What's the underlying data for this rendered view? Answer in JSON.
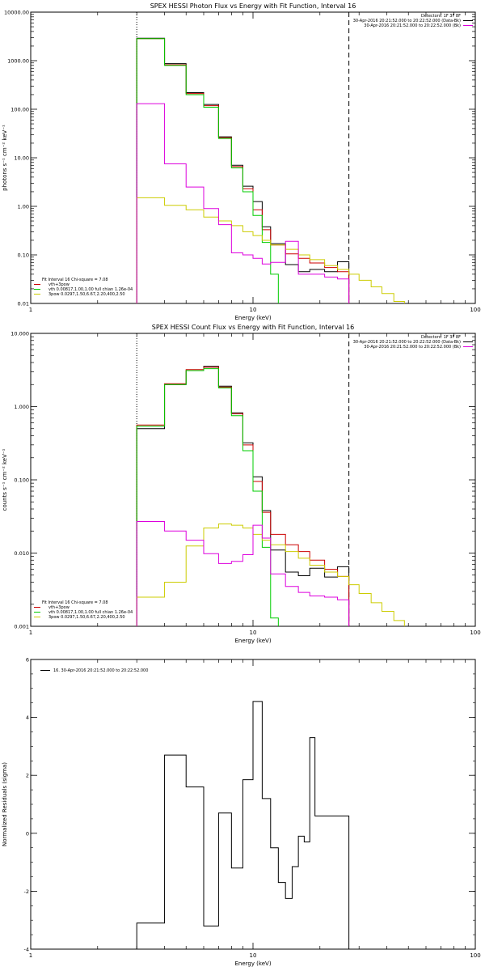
{
  "chart_data": [
    {
      "type": "line",
      "title": "SPEX HESSI Photon Flux vs Energy with Fit Function, Interval 16",
      "xlabel": "Energy (keV)",
      "ylabel": "photons s⁻¹ cm⁻² keV⁻¹",
      "xlim": [
        1,
        100
      ],
      "ylim": [
        0.01,
        10000
      ],
      "xscale": "log",
      "yscale": "log",
      "x_ticks": [
        "1",
        "10",
        "100"
      ],
      "y_ticks": [
        "0.01",
        "0.10",
        "1.00",
        "10.00",
        "100.00",
        "1000.00",
        "10000.00"
      ],
      "vertical_lines": [
        {
          "x": 3.0,
          "style": "dotted"
        },
        {
          "x": 27.0,
          "style": "dashed"
        }
      ],
      "legend_top": [
        {
          "text": "Detectors: 1F 3F 8F",
          "color": ""
        },
        {
          "text": "30-Apr-2016 20:21:52.000 to 20:22:52.000 (Data-Bk)",
          "color": "#000000"
        },
        {
          "text": "30-Apr-2016 20:21:52.000 to 20:22:52.000 (Bk)",
          "color": "#dd00dd"
        }
      ],
      "legend_bottom": [
        {
          "text": "Fit Interval 16   Chi-square = 7.08",
          "color": ""
        },
        {
          "text": "vth+3pow",
          "color": "#cc0000"
        },
        {
          "text": "vth 0.00817,1.00,1.00  full chian 1.26e-04",
          "color": "#00cc00"
        },
        {
          "text": "3pow 0.0297,1.50,6.67,2.20,400,2.50",
          "color": "#cccc00"
        }
      ],
      "series": [
        {
          "name": "Data-Bk",
          "color": "#000000",
          "edges": [
            3,
            4,
            5,
            6,
            7,
            8,
            9,
            10,
            11,
            12,
            14,
            16,
            18,
            21,
            24,
            27
          ],
          "values": [
            2900,
            870,
            220,
            125,
            27,
            7,
            2.6,
            1.25,
            0.38,
            0.17,
            0.063,
            0.045,
            0.05,
            0.045,
            0.072
          ]
        },
        {
          "name": "vth+3pow",
          "color": "#cc0000",
          "edges": [
            3,
            4,
            5,
            6,
            7,
            8,
            9,
            10,
            11,
            12,
            14,
            16,
            18,
            21,
            24,
            27
          ],
          "values": [
            2850,
            820,
            210,
            118,
            26,
            6.6,
            2.3,
            0.85,
            0.33,
            0.16,
            0.105,
            0.085,
            0.068,
            0.055,
            0.045
          ]
        },
        {
          "name": "vth",
          "color": "#00cc00",
          "edges": [
            3,
            4,
            5,
            6,
            7,
            8,
            9,
            10,
            11,
            12,
            13
          ],
          "values": [
            2850,
            800,
            200,
            110,
            25,
            6.2,
            2.0,
            0.65,
            0.18,
            0.04
          ]
        },
        {
          "name": "3pow",
          "color": "#cccc00",
          "edges": [
            3,
            4,
            5,
            6,
            7,
            8,
            9,
            10,
            11,
            12,
            14,
            16,
            18,
            21,
            24,
            27,
            30,
            34,
            38,
            43,
            48
          ],
          "values": [
            1.5,
            1.05,
            0.85,
            0.6,
            0.5,
            0.4,
            0.3,
            0.25,
            0.2,
            0.16,
            0.13,
            0.1,
            0.08,
            0.06,
            0.05,
            0.04,
            0.03,
            0.022,
            0.016,
            0.011
          ]
        },
        {
          "name": "Bk",
          "color": "#dd00dd",
          "edges": [
            3,
            4,
            5,
            6,
            7,
            8,
            9,
            10,
            11,
            12,
            14,
            16,
            18,
            21,
            24,
            27
          ],
          "values": [
            130,
            7.5,
            2.5,
            0.9,
            0.42,
            0.11,
            0.1,
            0.085,
            0.065,
            0.07,
            0.19,
            0.04,
            0.04,
            0.035,
            0.032
          ]
        }
      ]
    },
    {
      "type": "line",
      "title": "SPEX HESSI Count Flux vs Energy with Fit Function, Interval 16",
      "xlabel": "Energy (keV)",
      "ylabel": "counts s⁻¹ cm⁻² keV⁻¹",
      "xlim": [
        1,
        100
      ],
      "ylim": [
        0.001,
        10
      ],
      "xscale": "log",
      "yscale": "log",
      "x_ticks": [
        "1",
        "10",
        "100"
      ],
      "y_ticks": [
        "0.001",
        "0.010",
        "0.100",
        "1.000",
        "10.000"
      ],
      "vertical_lines": [
        {
          "x": 3.0,
          "style": "dotted"
        },
        {
          "x": 27.0,
          "style": "dashed"
        }
      ],
      "legend_top": [
        {
          "text": "Detectors: 1F 3F 8F",
          "color": ""
        },
        {
          "text": "30-Apr-2016 20:21:52.000 to 20:22:52.000 (Data-Bk)",
          "color": "#000000"
        },
        {
          "text": "30-Apr-2016 20:21:52.000 to 20:22:52.000 (Bk)",
          "color": "#dd00dd"
        }
      ],
      "legend_bottom": [
        {
          "text": "Fit Interval 16   Chi-square = 7.08",
          "color": ""
        },
        {
          "text": "vth+3pow",
          "color": "#cc0000"
        },
        {
          "text": "vth 0.00817,1.00,1.00  full chian 1.26e-04",
          "color": "#00cc00"
        },
        {
          "text": "3pow 0.0297,1.50,6.67,2.20,400,2.50",
          "color": "#cccc00"
        }
      ],
      "series": [
        {
          "name": "Data-Bk",
          "color": "#000000",
          "edges": [
            3,
            4,
            5,
            6,
            7,
            8,
            9,
            10,
            11,
            12,
            14,
            16,
            18,
            21,
            24,
            27
          ],
          "values": [
            0.5,
            2.0,
            3.1,
            3.55,
            1.9,
            0.82,
            0.32,
            0.11,
            0.038,
            0.011,
            0.0055,
            0.0049,
            0.0062,
            0.0047,
            0.0065
          ]
        },
        {
          "name": "vth+3pow",
          "color": "#cc0000",
          "edges": [
            3,
            4,
            5,
            6,
            7,
            8,
            9,
            10,
            11,
            12,
            14,
            16,
            18,
            21,
            24,
            27
          ],
          "values": [
            0.56,
            2.05,
            3.2,
            3.45,
            1.85,
            0.8,
            0.3,
            0.095,
            0.036,
            0.018,
            0.013,
            0.0105,
            0.008,
            0.006,
            0.0048
          ]
        },
        {
          "name": "vth",
          "color": "#00cc00",
          "edges": [
            3,
            4,
            5,
            6,
            7,
            8,
            9,
            10,
            11,
            12,
            13
          ],
          "values": [
            0.54,
            2.0,
            3.1,
            3.3,
            1.8,
            0.75,
            0.25,
            0.07,
            0.012,
            0.0013
          ]
        },
        {
          "name": "3pow",
          "color": "#cccc00",
          "edges": [
            3,
            4,
            5,
            6,
            7,
            8,
            9,
            10,
            11,
            12,
            14,
            16,
            18,
            21,
            24,
            27,
            30,
            34,
            38,
            43,
            48
          ],
          "values": [
            0.0025,
            0.004,
            0.0125,
            0.022,
            0.025,
            0.024,
            0.022,
            0.018,
            0.015,
            0.013,
            0.0105,
            0.0085,
            0.0068,
            0.0055,
            0.0048,
            0.0037,
            0.0028,
            0.0021,
            0.0016,
            0.0012
          ]
        },
        {
          "name": "Bk",
          "color": "#dd00dd",
          "edges": [
            3,
            4,
            5,
            6,
            7,
            8,
            9,
            10,
            11,
            12,
            14,
            16,
            18,
            21,
            24,
            27
          ],
          "values": [
            0.027,
            0.02,
            0.015,
            0.0098,
            0.0072,
            0.0077,
            0.0095,
            0.024,
            0.016,
            0.0052,
            0.0035,
            0.0029,
            0.0026,
            0.0025,
            0.0023
          ]
        }
      ]
    },
    {
      "type": "line",
      "title": "",
      "xlabel": "Energy (keV)",
      "ylabel": "Normalized Residuals (sigma)",
      "xlim": [
        1,
        100
      ],
      "ylim": [
        -4,
        6
      ],
      "xscale": "log",
      "yscale": "linear",
      "x_ticks": [
        "1",
        "10",
        "100"
      ],
      "y_ticks": [
        "-4",
        "-2",
        "0",
        "2",
        "4",
        "6"
      ],
      "vertical_lines": [],
      "legend_top": [
        {
          "text": "16. 30-Apr-2016 20:21:52.000 to 20:22:52.000",
          "color": "#000000"
        }
      ],
      "legend_bottom": [],
      "series": [
        {
          "name": "16. 30-Apr-2016 20:21:52.000 to 20:22:52.000",
          "color": "#000000",
          "edges": [
            3,
            4,
            5,
            6,
            7,
            8,
            9,
            10,
            11,
            12,
            13,
            14,
            15,
            16,
            17,
            18,
            19,
            21,
            22,
            24,
            27
          ],
          "values": [
            -3.1,
            2.7,
            1.6,
            -3.2,
            0.7,
            -1.2,
            1.85,
            4.55,
            1.2,
            -0.5,
            -1.7,
            -2.25,
            -1.15,
            -0.1,
            -0.3,
            3.3,
            0.6,
            0.6,
            0.6,
            0.6
          ]
        }
      ]
    }
  ]
}
